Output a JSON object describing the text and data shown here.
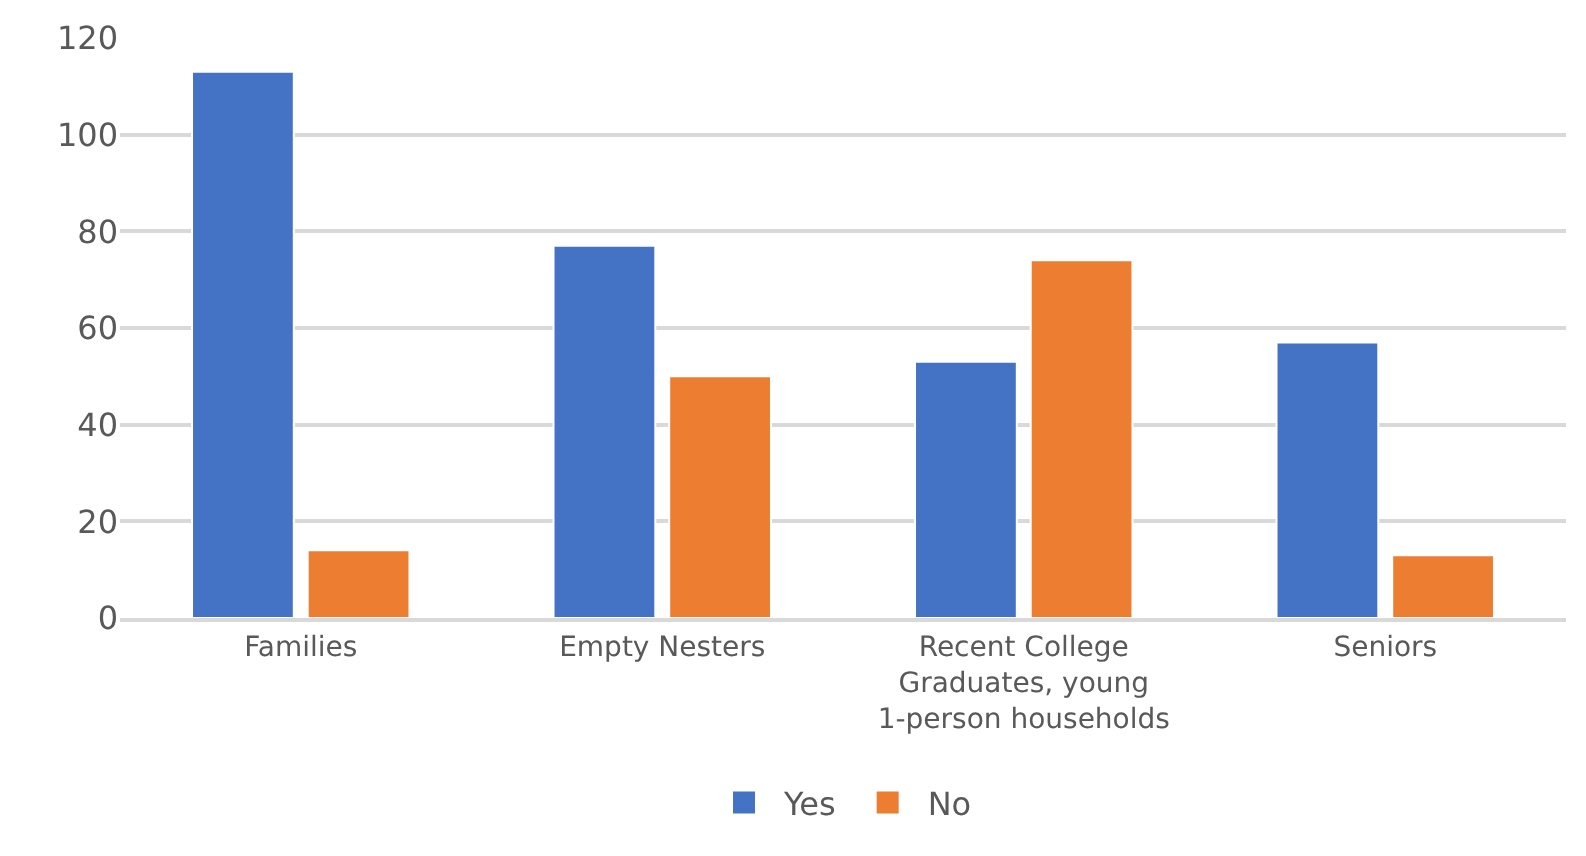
{
  "chart_data": {
    "type": "bar",
    "categories": [
      "Families",
      "Empty Nesters",
      "Recent College Graduates, young 1-person households",
      "Seniors"
    ],
    "series": [
      {
        "name": "Yes",
        "color": "#4472c4",
        "values": [
          113,
          77,
          53,
          57
        ]
      },
      {
        "name": "No",
        "color": "#ed7d31",
        "values": [
          14,
          50,
          74,
          13
        ]
      }
    ],
    "ylim": [
      0,
      120
    ],
    "yticks": [
      0,
      20,
      40,
      60,
      80,
      100,
      120
    ],
    "grid": "y",
    "legend": "bottom"
  }
}
